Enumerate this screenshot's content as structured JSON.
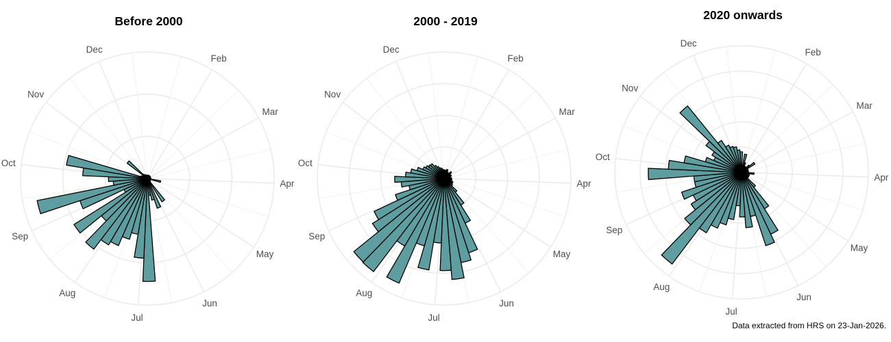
{
  "caption": "Data extracted from HRS on 23-Jan-2026.",
  "colors": {
    "bar_fill": "#5f9ea0",
    "bar_outline": "#000000",
    "grid": "#ebebeb",
    "axis_text": "#4d4d4d"
  },
  "chart_data": [
    {
      "type": "bar",
      "coord": "polar",
      "title": "Before 2000",
      "theta_labels": [
        "Feb",
        "Mar",
        "Apr",
        "May",
        "Jun",
        "Jul",
        "Aug",
        "Sep",
        "Oct",
        "Nov",
        "Dec"
      ],
      "rlim": [
        0,
        30
      ],
      "radial_gridlines": [
        10,
        20,
        30
      ],
      "values": [
        0.8,
        0.8,
        0.8,
        0.8,
        0.8,
        0.8,
        0.8,
        0.8,
        0.8,
        0.8,
        0.8,
        0.8,
        0.8,
        0.8,
        3.2,
        0.8,
        0.8,
        0.8,
        0.8,
        1.0,
        6.5,
        1.5,
        7.4,
        5.2,
        4.0,
        24.4,
        18.9,
        13.4,
        15.0,
        17.3,
        18.2,
        21.0,
        14.0,
        20.5,
        6.1,
        16.8,
        26.6,
        8.1,
        9.2,
        15.3,
        19.4,
        1.6,
        1.3,
        1.3,
        6.0,
        1.3,
        1.0,
        1.0,
        0.8,
        0.8,
        0.8,
        0.8
      ]
    },
    {
      "type": "bar",
      "coord": "polar",
      "title": "2000 - 2019",
      "theta_labels": [
        "Feb",
        "Mar",
        "Apr",
        "May",
        "Jun",
        "Jul",
        "Aug",
        "Sep",
        "Oct",
        "Nov",
        "Dec"
      ],
      "rlim": [
        0,
        40
      ],
      "radial_gridlines": [
        10,
        20,
        30,
        40
      ],
      "values": [
        2.7,
        2.2,
        3.0,
        2.4,
        2.0,
        2.2,
        3.0,
        2.4,
        2.0,
        2.4,
        2.0,
        2.0,
        2.4,
        2.2,
        2.4,
        2.7,
        3.0,
        3.0,
        3.3,
        5.6,
        9.9,
        15.6,
        24.7,
        27.1,
        32.0,
        29.1,
        20.4,
        29.3,
        22.2,
        36.0,
        24.7,
        36.9,
        36.7,
        26.7,
        24.4,
        16.2,
        11.3,
        13.6,
        15.6,
        12.2,
        10.7,
        8.9,
        7.3,
        6.7,
        6.2,
        6.0,
        4.9,
        4.2,
        3.6,
        3.3,
        2.9,
        2.7
      ]
    },
    {
      "type": "bar",
      "coord": "polar",
      "title": "2020 onwards",
      "theta_labels": [
        "Feb",
        "Mar",
        "Apr",
        "May",
        "Jun",
        "Jul",
        "Aug",
        "Sep",
        "Oct",
        "Nov",
        "Dec"
      ],
      "rlim": [
        0,
        50
      ],
      "radial_gridlines": [
        10,
        20,
        30,
        40,
        50
      ],
      "values": [
        2.7,
        7.3,
        4.0,
        2.7,
        2.2,
        2.7,
        4.0,
        6.2,
        2.7,
        2.7,
        2.7,
        2.7,
        2.7,
        4.9,
        3.2,
        3.2,
        3.2,
        3.2,
        3.2,
        7.6,
        17.0,
        27.0,
        30.5,
        17.8,
        21.9,
        17.6,
        13.2,
        18.9,
        21.6,
        24.0,
        27.6,
        45.4,
        28.9,
        23.5,
        21.1,
        24.9,
        18.9,
        18.9,
        36.8,
        28.9,
        23.0,
        14.9,
        11.9,
        13.5,
        17.6,
        33.8,
        14.9,
        11.9,
        10.8,
        10.3,
        8.9,
        8.1
      ]
    }
  ]
}
